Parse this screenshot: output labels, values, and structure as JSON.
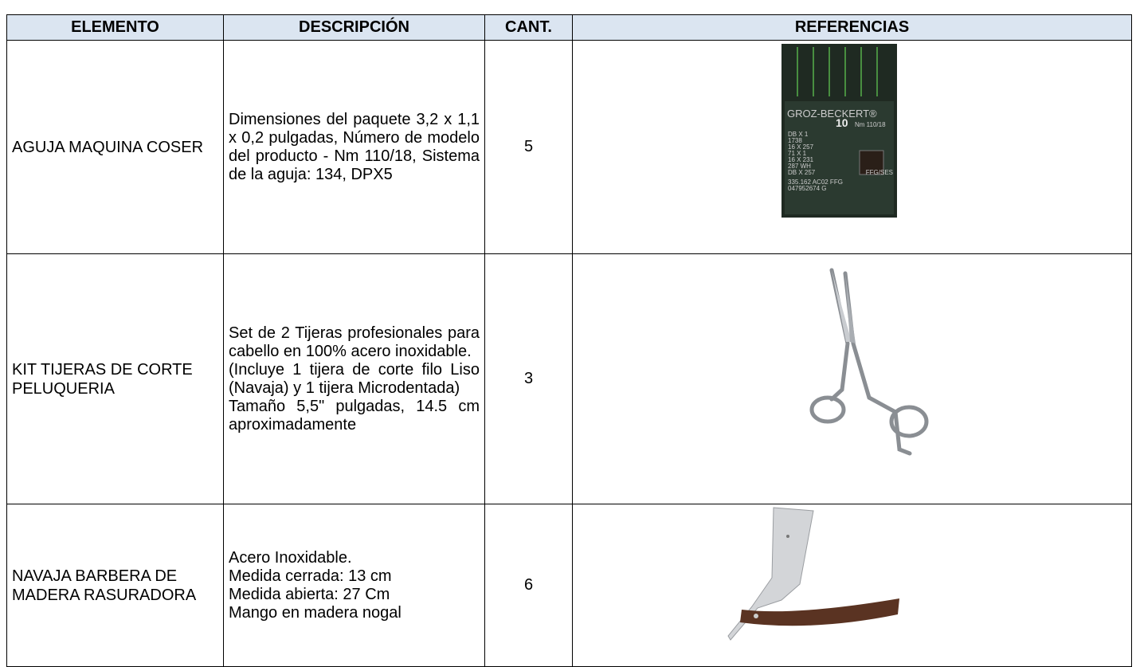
{
  "table": {
    "header": [
      "ELEMENTO",
      "DESCRIPCIÓN",
      "CANT.",
      "REFERENCIAS"
    ],
    "rows": [
      {
        "element": "AGUJA MAQUINA COSER",
        "description": [
          "Dimensiones del paquete 3,2 x 1,1 x 0,2 pulgadas, Número de modelo del producto - Nm 110/18, Sistema de la aguja: 134, DPX5"
        ],
        "quantity": "5",
        "image_text": [
          "GROZ-BECKERT®",
          "10",
          "Nm 110/18",
          "DB X 1",
          "1738",
          "16 X 257",
          "71 X 1",
          "16 X 231",
          "287 WH",
          "DB X 257",
          "FFG/SES",
          "335.162 AC02 FFG",
          "047952674 G"
        ]
      },
      {
        "element": "KIT TIJERAS DE CORTE PELUQUERIA",
        "description": [
          "Set de 2 Tijeras profesionales para cabello en 100% acero inoxidable.",
          "(Incluye 1 tijera de corte filo Liso (Navaja) y 1 tijera Microdentada)",
          "Tamaño 5,5\" pulgadas, 14.5 cm aproximadamente"
        ],
        "quantity": "3"
      },
      {
        "element": "NAVAJA BARBERA DE MADERA RASURADORA",
        "description": [
          "Acero Inoxidable.",
          "Medida cerrada: 13 cm",
          "Medida abierta: 27 Cm",
          "Mango en madera nogal"
        ],
        "quantity": "6"
      }
    ]
  }
}
